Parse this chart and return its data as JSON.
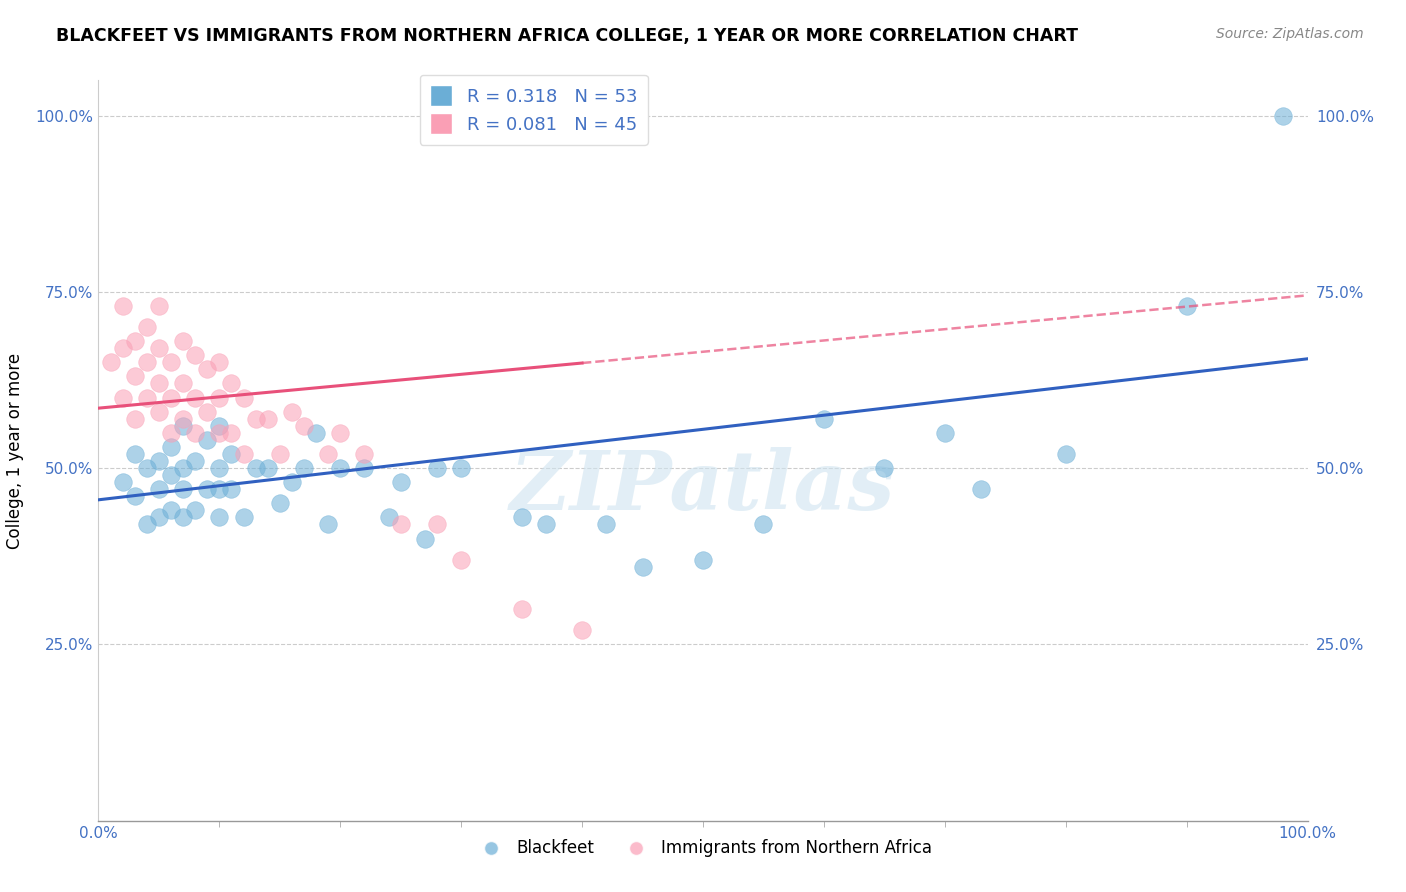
{
  "title": "BLACKFEET VS IMMIGRANTS FROM NORTHERN AFRICA COLLEGE, 1 YEAR OR MORE CORRELATION CHART",
  "source": "Source: ZipAtlas.com",
  "ylabel": "College, 1 year or more",
  "blue_R": 0.318,
  "blue_N": 53,
  "pink_R": 0.081,
  "pink_N": 45,
  "blue_color": "#6baed6",
  "pink_color": "#fa9fb5",
  "blue_line_color": "#3060c0",
  "pink_line_color": "#e8507a",
  "watermark": "ZIPatlas",
  "legend_label_blue": "Blackfeet",
  "legend_label_pink": "Immigrants from Northern Africa",
  "text_color": "#4472c4",
  "blue_scatter_x": [
    0.02,
    0.03,
    0.03,
    0.04,
    0.04,
    0.05,
    0.05,
    0.05,
    0.06,
    0.06,
    0.06,
    0.07,
    0.07,
    0.07,
    0.07,
    0.08,
    0.08,
    0.09,
    0.09,
    0.1,
    0.1,
    0.1,
    0.1,
    0.11,
    0.11,
    0.12,
    0.13,
    0.14,
    0.15,
    0.16,
    0.17,
    0.18,
    0.19,
    0.2,
    0.22,
    0.24,
    0.25,
    0.27,
    0.28,
    0.3,
    0.35,
    0.37,
    0.42,
    0.45,
    0.5,
    0.55,
    0.6,
    0.65,
    0.7,
    0.73,
    0.8,
    0.9,
    0.98
  ],
  "blue_scatter_y": [
    0.48,
    0.46,
    0.52,
    0.42,
    0.5,
    0.43,
    0.47,
    0.51,
    0.44,
    0.49,
    0.53,
    0.43,
    0.47,
    0.5,
    0.56,
    0.44,
    0.51,
    0.47,
    0.54,
    0.43,
    0.47,
    0.5,
    0.56,
    0.47,
    0.52,
    0.43,
    0.5,
    0.5,
    0.45,
    0.48,
    0.5,
    0.55,
    0.42,
    0.5,
    0.5,
    0.43,
    0.48,
    0.4,
    0.5,
    0.5,
    0.43,
    0.42,
    0.42,
    0.36,
    0.37,
    0.42,
    0.57,
    0.5,
    0.55,
    0.47,
    0.52,
    0.73,
    1.0
  ],
  "pink_scatter_x": [
    0.01,
    0.02,
    0.02,
    0.02,
    0.03,
    0.03,
    0.03,
    0.04,
    0.04,
    0.04,
    0.05,
    0.05,
    0.05,
    0.05,
    0.06,
    0.06,
    0.06,
    0.07,
    0.07,
    0.07,
    0.08,
    0.08,
    0.08,
    0.09,
    0.09,
    0.1,
    0.1,
    0.1,
    0.11,
    0.11,
    0.12,
    0.12,
    0.13,
    0.14,
    0.15,
    0.16,
    0.17,
    0.19,
    0.2,
    0.22,
    0.25,
    0.28,
    0.3,
    0.35,
    0.4
  ],
  "pink_scatter_y": [
    0.65,
    0.6,
    0.67,
    0.73,
    0.57,
    0.63,
    0.68,
    0.6,
    0.65,
    0.7,
    0.58,
    0.62,
    0.67,
    0.73,
    0.55,
    0.6,
    0.65,
    0.57,
    0.62,
    0.68,
    0.55,
    0.6,
    0.66,
    0.58,
    0.64,
    0.55,
    0.6,
    0.65,
    0.55,
    0.62,
    0.52,
    0.6,
    0.57,
    0.57,
    0.52,
    0.58,
    0.56,
    0.52,
    0.55,
    0.52,
    0.42,
    0.42,
    0.37,
    0.3,
    0.27
  ]
}
